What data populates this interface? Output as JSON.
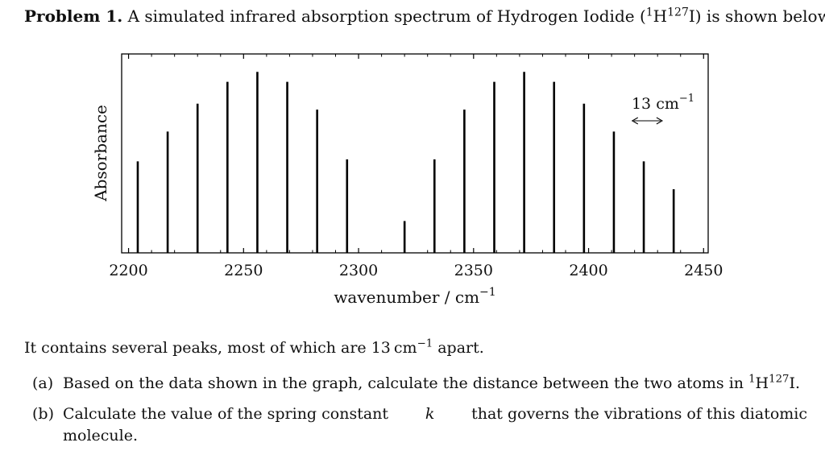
{
  "problem": {
    "label": "Problem 1.",
    "text_before": "A simulated infrared absorption spectrum of Hydrogen Iodide (",
    "iso1_mass": "1",
    "iso1_symbol": "H",
    "iso2_mass": "127",
    "iso2_symbol": "I",
    "text_after": ") is shown below:"
  },
  "chart_data": {
    "type": "bar",
    "ylabel": "Absorbance",
    "xlabel_text": "wavenumber / cm",
    "xlabel_exponent": "−1",
    "xlim": [
      2197,
      2452
    ],
    "ylim": [
      0,
      1
    ],
    "xticks": [
      2200,
      2250,
      2300,
      2350,
      2400,
      2450
    ],
    "peaks": [
      {
        "x": 2204,
        "y": 0.46
      },
      {
        "x": 2217,
        "y": 0.61
      },
      {
        "x": 2230,
        "y": 0.75
      },
      {
        "x": 2243,
        "y": 0.86
      },
      {
        "x": 2256,
        "y": 0.91
      },
      {
        "x": 2269,
        "y": 0.86
      },
      {
        "x": 2282,
        "y": 0.72
      },
      {
        "x": 2295,
        "y": 0.47
      },
      {
        "x": 2320,
        "y": 0.16
      },
      {
        "x": 2333,
        "y": 0.47
      },
      {
        "x": 2346,
        "y": 0.72
      },
      {
        "x": 2359,
        "y": 0.86
      },
      {
        "x": 2372,
        "y": 0.91
      },
      {
        "x": 2385,
        "y": 0.86
      },
      {
        "x": 2398,
        "y": 0.75
      },
      {
        "x": 2411,
        "y": 0.61
      },
      {
        "x": 2424,
        "y": 0.46
      },
      {
        "x": 2437,
        "y": 0.32
      }
    ],
    "annotation": {
      "value": "13",
      "unit": "cm",
      "exponent": "−1",
      "x_start": 2419,
      "x_end": 2432
    }
  },
  "text": {
    "line1_before": "It contains several peaks, most of which are 13",
    "line1_unit": "cm",
    "line1_exp": "−1",
    "line1_after": " apart."
  },
  "questions": {
    "a_label": "(a)",
    "a_text": "Based on the data shown in the graph, calculate the distance between the two atoms in ",
    "a_iso1": "1",
    "a_sym1": "H",
    "a_iso2": "127",
    "a_sym2": "I",
    "a_end": ".",
    "b_label": "(b)",
    "b_text_line1": "Calculate the value of the spring constant",
    "b_k": "k",
    "b_text_line1_end": "that governs the vibrations of this diatomic",
    "b_text_line2": "molecule."
  }
}
